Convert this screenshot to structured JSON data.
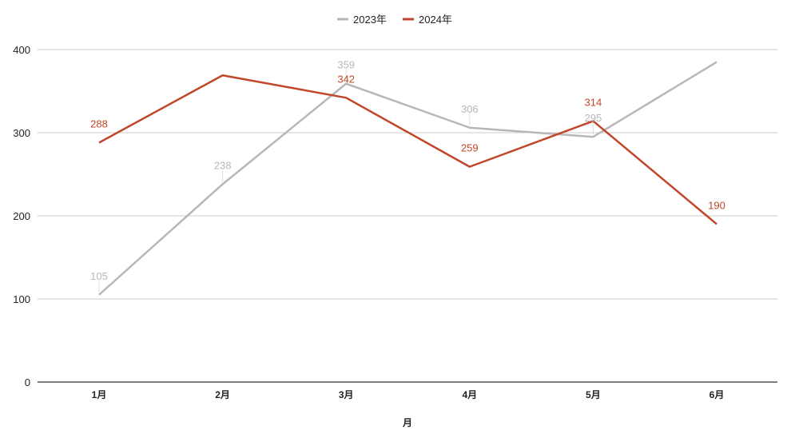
{
  "chart_data": {
    "type": "line",
    "categories": [
      "1月",
      "2月",
      "3月",
      "4月",
      "5月",
      "6月"
    ],
    "series": [
      {
        "name": "2023年",
        "color": "#b7b7b7",
        "values": [
          105,
          238,
          359,
          306,
          295,
          385
        ],
        "labels": [
          "105",
          "238",
          "359",
          "306",
          "295",
          null
        ]
      },
      {
        "name": "2024年",
        "color": "#c0472a",
        "values": [
          288,
          369,
          342,
          259,
          314,
          190
        ],
        "labels": [
          "288",
          null,
          "342",
          "259",
          "314",
          "190"
        ]
      }
    ],
    "xlabel": "月",
    "ylabel": "",
    "ylim": [
      0,
      400
    ],
    "yticks": [
      0,
      100,
      200,
      300,
      400
    ],
    "grid": true,
    "legend_position": "top-center",
    "gridline_color": "#cccccc",
    "axis_color": "#333333"
  }
}
